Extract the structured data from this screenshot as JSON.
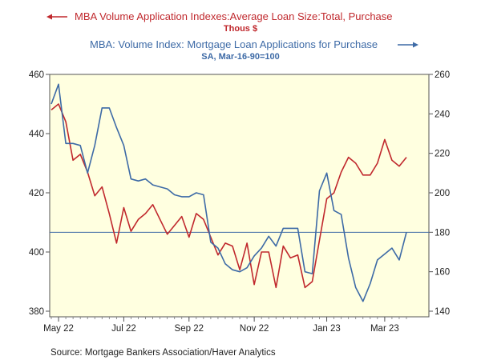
{
  "chart_data": {
    "type": "line",
    "title_left": "MBA Volume Application Indexes:Average Loan Size:Total, Purchase",
    "subtitle_left": "Thous $",
    "title_right": "MBA: Volume Index: Mortgage Loan Applications for Purchase",
    "subtitle_right": "SA, Mar-16-90=100",
    "source": "Source:  Mortgage Bankers Association/Haver Analytics",
    "x_tick_labels": [
      "May 22",
      "Jul 22",
      "Sep 22",
      "Nov 22",
      "Jan 23",
      "Mar 23"
    ],
    "x_tick_week_index": [
      1,
      10,
      19,
      28,
      38,
      46
    ],
    "left_axis": {
      "min": 380,
      "max": 460,
      "ticks": [
        380,
        400,
        420,
        440,
        460
      ]
    },
    "right_axis": {
      "min": 140,
      "max": 260,
      "ticks": [
        140,
        160,
        180,
        200,
        220,
        240,
        260
      ]
    },
    "reference_line_right": 180,
    "series": [
      {
        "name": "MBA Volume Application Indexes:Average Loan Size:Total, Purchase",
        "axis": "left",
        "color": "#c0282d",
        "values": [
          448,
          450,
          444,
          431,
          433,
          427,
          419,
          422,
          413,
          403,
          415,
          407,
          411,
          413,
          416,
          411,
          406,
          409,
          412,
          405,
          413,
          411,
          405,
          399,
          403,
          402,
          394,
          403,
          389,
          400,
          400,
          388,
          402,
          398,
          399,
          388,
          390,
          404,
          418,
          420,
          427,
          432,
          430,
          426,
          426,
          430,
          438,
          431,
          429,
          432
        ]
      },
      {
        "name": "MBA: Volume Index: Mortgage Loan Applications for Purchase",
        "axis": "right",
        "color": "#3d6aa6",
        "values": [
          245,
          255,
          225,
          225,
          224,
          210,
          224,
          243,
          243,
          233,
          224,
          207,
          206,
          207,
          204,
          203,
          202,
          199,
          198,
          198,
          200,
          199,
          175,
          172,
          164,
          161,
          160,
          162,
          168,
          172,
          178,
          173,
          182,
          182,
          182,
          160,
          159,
          201,
          210,
          191,
          189,
          167,
          152,
          145,
          154,
          166,
          169,
          172,
          166,
          180
        ]
      }
    ]
  }
}
